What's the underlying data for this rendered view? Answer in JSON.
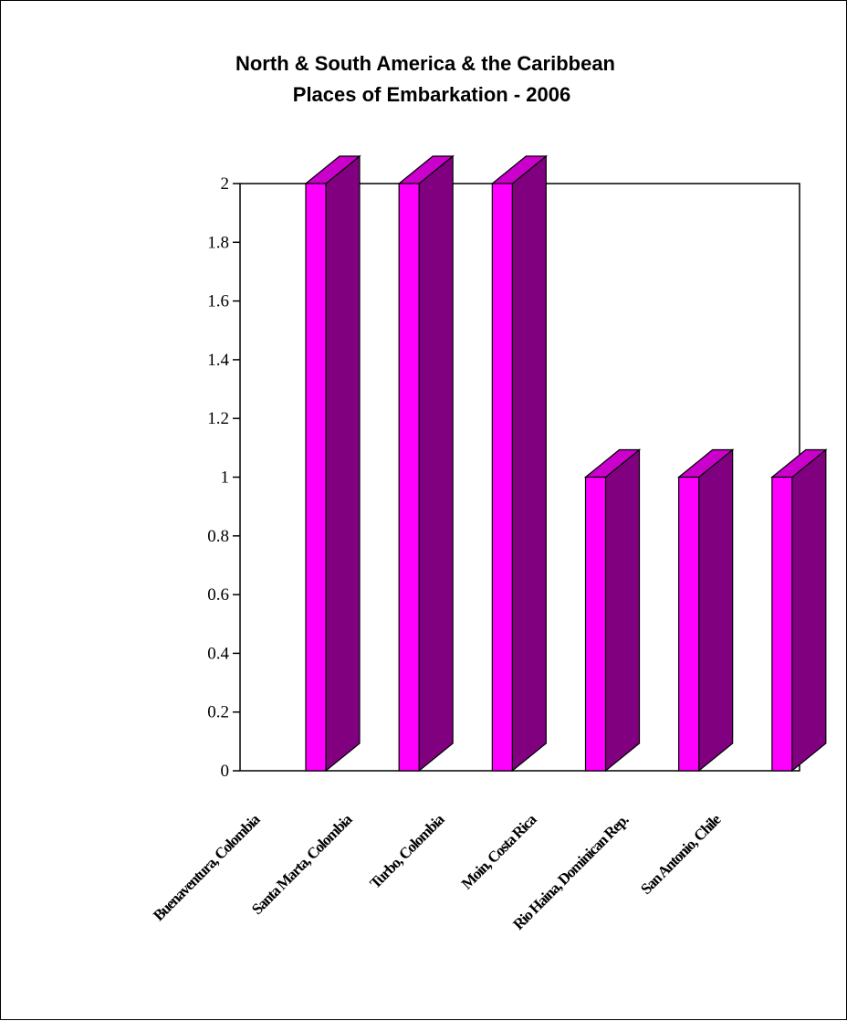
{
  "chart_data": {
    "type": "bar",
    "title": "North & South America & the Caribbean",
    "subtitle": "Places of Embarkation - 2006",
    "categories": [
      "Buenaventura, Colombia",
      "Santa Marta, Colombia",
      "Turbo, Colombia",
      "Moin,  Costa Rica",
      "Rio Haina, Dominican Rep.",
      "San Antonio, Chile"
    ],
    "values": [
      2,
      2,
      2,
      1,
      1,
      1
    ],
    "ylim": [
      0,
      2
    ],
    "yticks": [
      "0",
      "0.2",
      "0.4",
      "0.6",
      "0.8",
      "1",
      "1.2",
      "1.4",
      "1.6",
      "1.8",
      "2"
    ],
    "style": "3d-column",
    "colors": {
      "front": "#ff00ff",
      "side": "#800080",
      "top": "#cc00cc"
    },
    "legend": "none",
    "grid": false
  }
}
